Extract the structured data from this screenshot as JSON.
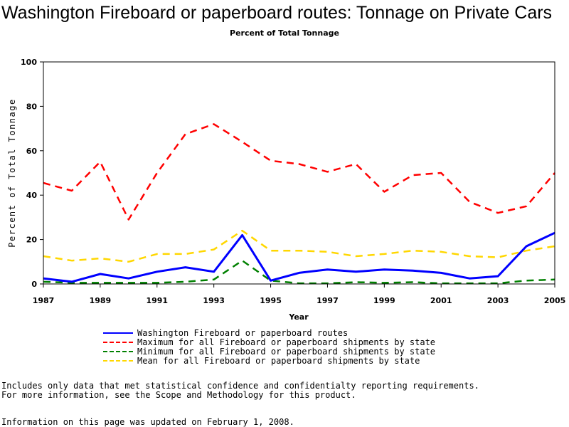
{
  "title": "Washington Fireboard or paperboard routes: Tonnage on Private Cars",
  "subtitle": "Percent of Total Tonnage",
  "chart_data": {
    "type": "line",
    "title": "Washington Fireboard or paperboard routes: Tonnage on Private Cars",
    "subtitle": "Percent of Total Tonnage",
    "xlabel": "Year",
    "ylabel": "Percent of Total Tonnage",
    "x": [
      1987,
      1988,
      1989,
      1990,
      1991,
      1992,
      1993,
      1994,
      1995,
      1996,
      1997,
      1998,
      1999,
      2000,
      2001,
      2002,
      2003,
      2004,
      2005
    ],
    "xlim": [
      1987,
      2005
    ],
    "ylim": [
      0,
      100
    ],
    "x_ticks": [
      "1987",
      "1989",
      "1991",
      "1993",
      "1995",
      "1997",
      "1999",
      "2001",
      "2003",
      "2005"
    ],
    "y_ticks": [
      "0",
      "20",
      "40",
      "60",
      "80",
      "100"
    ],
    "grid": false,
    "legend_position": "bottom",
    "series": [
      {
        "name": "Washington Fireboard or paperboard routes",
        "color": "#0000ff",
        "style": "solid",
        "values": [
          2.5,
          1,
          4.5,
          2.5,
          5.5,
          7.5,
          5.5,
          22,
          1.5,
          5,
          6.5,
          5.5,
          6.5,
          6,
          5,
          2.5,
          3.5,
          17,
          23
        ]
      },
      {
        "name": "Maximum for all Fireboard or paperboard shipments by state",
        "color": "#ff0000",
        "style": "dashed",
        "values": [
          45.5,
          42,
          55,
          29,
          50,
          67.5,
          72,
          64,
          55.5,
          54,
          50.5,
          54,
          41.5,
          49,
          50,
          37,
          32,
          35,
          50
        ]
      },
      {
        "name": "Minimum for all Fireboard or paperboard shipments by state",
        "color": "#008000",
        "style": "dashed",
        "values": [
          1,
          0.5,
          0.5,
          0.5,
          0.5,
          1,
          2,
          10.5,
          1.5,
          0.3,
          0.3,
          0.8,
          0.5,
          0.8,
          0.3,
          0.3,
          0.3,
          1.5,
          2
        ]
      },
      {
        "name": "Mean for all Fireboard or paperboard shipments by state",
        "color": "#ffd700",
        "style": "dashed",
        "values": [
          12.5,
          10.5,
          11.5,
          10,
          13.5,
          13.5,
          15.5,
          24,
          15,
          15,
          14.5,
          12.5,
          13.5,
          15,
          14.5,
          12.5,
          12,
          15,
          17
        ]
      }
    ]
  },
  "footnotes": [
    "Includes only data that met statistical confidence and confidentialty reporting requirements.",
    "For more information, see the Scope and Methodology for this product.",
    "Information on this page was updated on February 1, 2008."
  ]
}
